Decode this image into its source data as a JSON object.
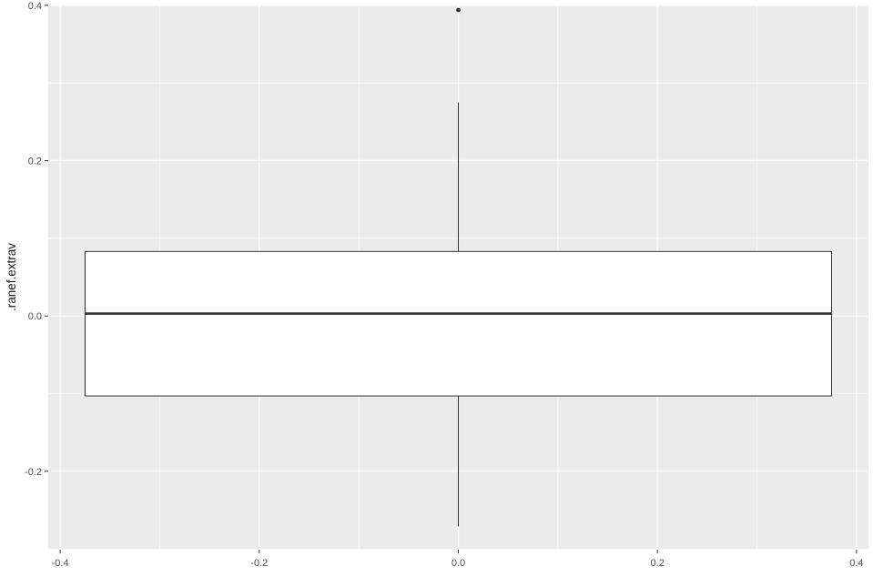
{
  "chart_data": {
    "type": "boxplot",
    "title": "",
    "xlabel": "",
    "ylabel": ".ranef.extrav",
    "xlim": [
      -0.412,
      0.412
    ],
    "ylim": [
      -0.301,
      0.401
    ],
    "x_ticks": [
      -0.4,
      -0.2,
      0.0,
      0.2,
      0.4
    ],
    "x_tick_labels": [
      "-0.4",
      "-0.2",
      "0.0",
      "0.2",
      "0.4"
    ],
    "y_ticks": [
      -0.2,
      0.0,
      0.2,
      0.4
    ],
    "y_tick_labels": [
      "-0.2",
      "0.0",
      "0.2",
      "0.4"
    ],
    "grid": true,
    "box": {
      "x_center": 0.0,
      "x_min": -0.375,
      "x_max": 0.375,
      "whisker_low": -0.271,
      "q1": -0.103,
      "median": 0.003,
      "q3": 0.083,
      "whisker_high": 0.275,
      "outliers": [
        0.394
      ]
    },
    "colors": {
      "panel_background": "#ebebeb",
      "grid": "#ffffff",
      "box_fill": "#ffffff",
      "box_line": "#333333",
      "outlier": "#333333"
    }
  }
}
